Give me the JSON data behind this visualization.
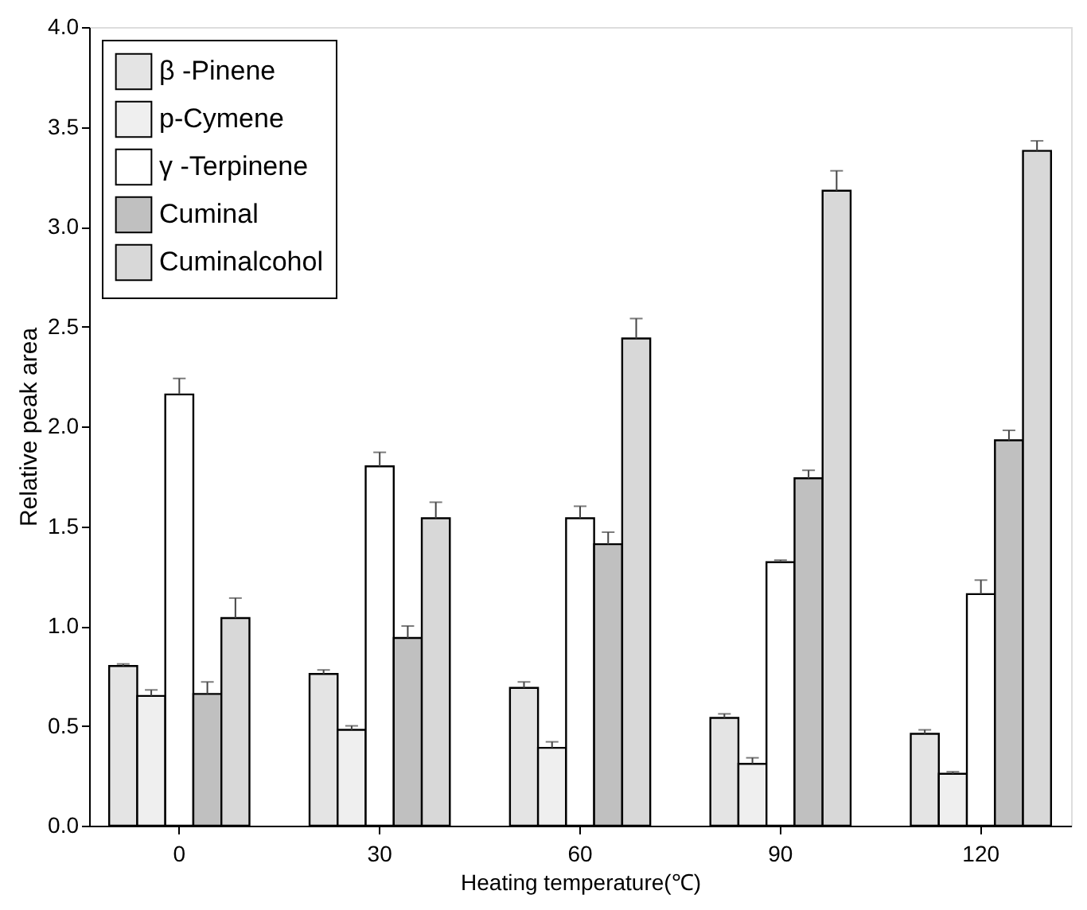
{
  "chart_data": {
    "type": "bar",
    "xlabel": "Heating temperature(℃)",
    "ylabel": "Relative peak area",
    "categories": [
      "0",
      "30",
      "60",
      "90",
      "120"
    ],
    "series": [
      {
        "name": "β -Pinene",
        "color": "#e4e4e4",
        "values": [
          0.8,
          0.76,
          0.69,
          0.54,
          0.46
        ],
        "errors": [
          [
            0.8,
            0.81
          ],
          [
            0.76,
            0.78
          ],
          [
            0.69,
            0.72
          ],
          [
            0.54,
            0.56
          ],
          [
            0.46,
            0.48
          ]
        ]
      },
      {
        "name": "p-Cymene",
        "color": "#efefef",
        "values": [
          0.65,
          0.48,
          0.39,
          0.31,
          0.26
        ],
        "errors": [
          [
            0.65,
            0.68
          ],
          [
            0.48,
            0.5
          ],
          [
            0.39,
            0.42
          ],
          [
            0.31,
            0.34
          ],
          [
            0.26,
            0.27
          ]
        ]
      },
      {
        "name": "γ -Terpinene",
        "color": "#ffffff",
        "values": [
          2.16,
          1.8,
          1.54,
          1.32,
          1.16
        ],
        "errors": [
          [
            2.16,
            2.24
          ],
          [
            1.8,
            1.87
          ],
          [
            1.54,
            1.6
          ],
          [
            1.32,
            1.33
          ],
          [
            1.16,
            1.23
          ]
        ]
      },
      {
        "name": "Cuminal",
        "color": "#c0c0c0",
        "values": [
          0.66,
          0.94,
          1.41,
          1.74,
          1.93
        ],
        "errors": [
          [
            0.66,
            0.72
          ],
          [
            0.94,
            1.0
          ],
          [
            1.41,
            1.47
          ],
          [
            1.74,
            1.78
          ],
          [
            1.93,
            1.98
          ]
        ]
      },
      {
        "name": "Cuminalcohol",
        "color": "#d8d8d8",
        "values": [
          1.04,
          1.54,
          2.44,
          3.18,
          3.38
        ],
        "errors": [
          [
            1.04,
            1.14
          ],
          [
            1.54,
            1.62
          ],
          [
            2.44,
            2.54
          ],
          [
            3.18,
            3.28
          ],
          [
            3.38,
            3.43
          ]
        ]
      }
    ],
    "ylim": [
      0,
      4
    ],
    "yticks": [
      {
        "value": 0,
        "label": "0.0"
      },
      0.5,
      {
        "value": 1,
        "label": "1.0"
      },
      1.5,
      {
        "value": 2,
        "label": "2.0"
      },
      2.5,
      {
        "value": 3,
        "label": "3.0"
      },
      3.5,
      {
        "value": 4,
        "label": "4.0"
      }
    ],
    "grid": false,
    "legend": "top left"
  }
}
